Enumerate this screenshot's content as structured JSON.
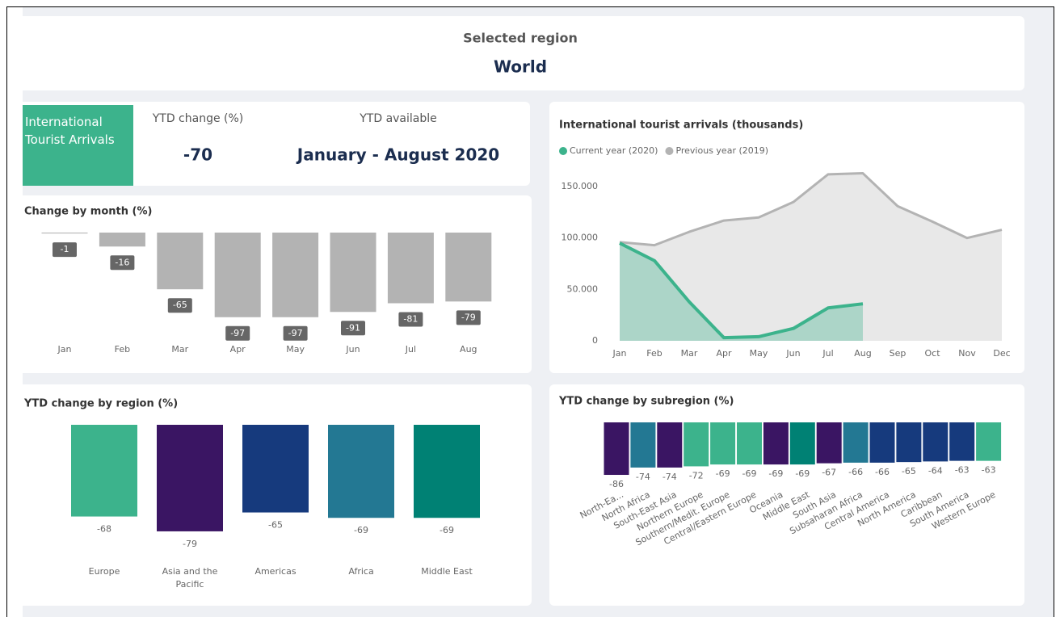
{
  "header": {
    "label": "Selected region",
    "value": "World"
  },
  "kpi": {
    "label": "International Tourist Arrivals",
    "ytd_change_label": "YTD change (%)",
    "ytd_change": -70,
    "ytd_available_label": "YTD available",
    "ytd_available": "January - August 2020"
  },
  "chart_data": [
    {
      "type": "bar",
      "title": "Change by month (%)",
      "categories": [
        "Jan",
        "Feb",
        "Mar",
        "Apr",
        "May",
        "Jun",
        "Jul",
        "Aug"
      ],
      "values": [
        -1,
        -16,
        -65,
        -97,
        -97,
        -91,
        -81,
        -79
      ],
      "color": "#b3b3b3"
    },
    {
      "type": "line",
      "title": "International tourist arrivals (thousands)",
      "x": [
        "Jan",
        "Feb",
        "Mar",
        "Apr",
        "May",
        "Jun",
        "Jul",
        "Aug",
        "Sep",
        "Oct",
        "Nov",
        "Dec"
      ],
      "series": [
        {
          "name": "Current year (2020)",
          "color": "#3cb38c",
          "values": [
            95000,
            78000,
            38000,
            3000,
            4000,
            12000,
            32000,
            36000,
            null,
            null,
            null,
            null
          ]
        },
        {
          "name": "Previous year (2019)",
          "color": "#b3b3b3",
          "values": [
            96000,
            93000,
            106000,
            117000,
            120000,
            135000,
            162000,
            163000,
            131000,
            116000,
            100000,
            108000
          ]
        }
      ],
      "ylim": [
        0,
        165000
      ],
      "yticks": [
        0,
        {
          "value": 50000,
          "label": "50.000"
        },
        {
          "value": 100000,
          "label": "100.000"
        },
        {
          "value": 150000,
          "label": "150.000"
        }
      ]
    },
    {
      "type": "bar",
      "title": "YTD change by region (%)",
      "categories": [
        "Europe",
        "Asia and the Pacific",
        "Americas",
        "Africa",
        "Middle East"
      ],
      "values": [
        -68,
        -79,
        -65,
        -69,
        -69
      ],
      "colors": [
        "#3cb38c",
        "#3a1563",
        "#163a7d",
        "#237893",
        "#008174"
      ]
    },
    {
      "type": "bar",
      "title": "YTD change by subregion (%)",
      "categories": [
        "North-Ea...",
        "North Africa",
        "South-East Asia",
        "Northern Europe",
        "Southern/Medit. Europe",
        "Central/Eastern Europe",
        "Oceania",
        "Middle East",
        "South Asia",
        "Subsaharan Africa",
        "Central America",
        "North America",
        "Caribbean",
        "South America",
        "Western Europe"
      ],
      "values": [
        -86,
        -74,
        -74,
        -72,
        -69,
        -69,
        -69,
        -69,
        -67,
        -66,
        -66,
        -65,
        -64,
        -63,
        -63
      ],
      "colors": [
        "#3a1563",
        "#237893",
        "#3a1563",
        "#3cb38c",
        "#3cb38c",
        "#3cb38c",
        "#3a1563",
        "#008174",
        "#3a1563",
        "#237893",
        "#163a7d",
        "#163a7d",
        "#163a7d",
        "#163a7d",
        "#3cb38c"
      ]
    }
  ]
}
